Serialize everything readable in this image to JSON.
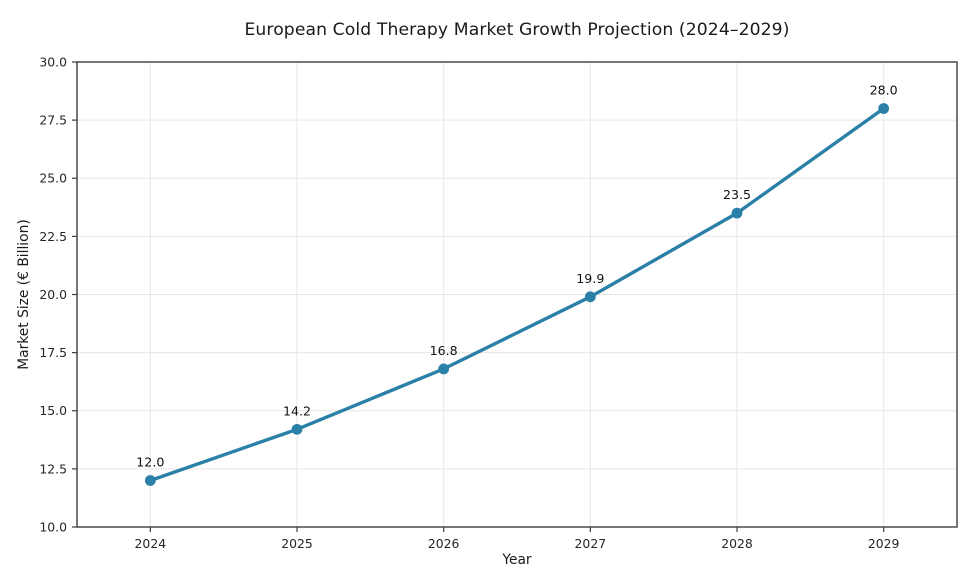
{
  "title": "European Cold Therapy Market Growth Projection (2024–2029)",
  "chart_data": {
    "type": "line",
    "title": "European Cold Therapy Market Growth Projection (2024–2029)",
    "xlabel": "Year",
    "ylabel": "Market Size (€ Billion)",
    "x": [
      2024,
      2025,
      2026,
      2027,
      2028,
      2029
    ],
    "values": [
      12.0,
      14.2,
      16.8,
      19.9,
      23.5,
      28.0
    ],
    "point_labels": [
      "12.0",
      "14.2",
      "16.8",
      "19.9",
      "23.5",
      "28.0"
    ],
    "xtick_labels": [
      "2024",
      "2025",
      "2026",
      "2027",
      "2028",
      "2029"
    ],
    "yticks": [
      10.0,
      12.5,
      15.0,
      17.5,
      20.0,
      22.5,
      25.0,
      27.5,
      30.0
    ],
    "ytick_labels": [
      "10.0",
      "12.5",
      "15.0",
      "17.5",
      "20.0",
      "22.5",
      "25.0",
      "27.5",
      "30.0"
    ],
    "xlim": [
      2023.5,
      2029.5
    ],
    "ylim": [
      10.0,
      30.0
    ],
    "grid": true,
    "legend_position": "none",
    "colors": {
      "line": "#2b80a8",
      "marker": "#2b80a8",
      "grid": "#e7e7e7",
      "spine": "#3d3d3d",
      "tick": "#3d3d3d",
      "text": "#1a1a1a",
      "background": "#ffffff"
    }
  }
}
